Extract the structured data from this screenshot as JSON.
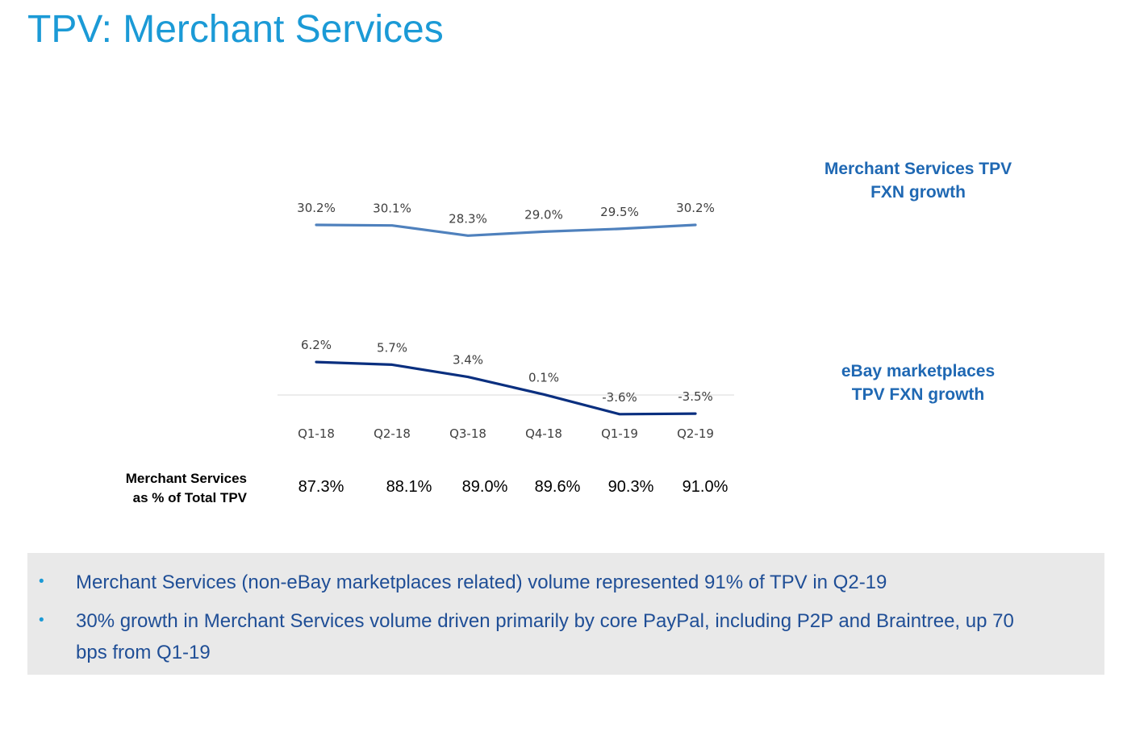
{
  "title": "TPV: Merchant Services",
  "colors": {
    "title": "#1b9ad6",
    "bullet": "#1b9ad6",
    "note_text": "#1f4e96",
    "merchant_line": "#4f81bd",
    "ebay_line": "#0a2f7f",
    "legend_text": "#1f68b3",
    "zero_line": "#d9d9d9",
    "label_text": "#404040",
    "notes_background": "#e9e9e9"
  },
  "chart_data": {
    "type": "line",
    "categories": [
      "Q1-18",
      "Q2-18",
      "Q3-18",
      "Q4-18",
      "Q1-19",
      "Q2-19"
    ],
    "series": [
      {
        "name": "Merchant Services TPV FXN growth",
        "name_lines": [
          "Merchant Services TPV",
          "FXN growth"
        ],
        "values": [
          30.2,
          30.1,
          28.3,
          29.0,
          29.5,
          30.2
        ],
        "data_labels": [
          "30.2%",
          "30.1%",
          "28.3%",
          "29.0%",
          "29.5%",
          "30.2%"
        ]
      },
      {
        "name": "eBay marketplaces TPV FXN growth",
        "name_lines": [
          "eBay marketplaces",
          "TPV FXN growth"
        ],
        "values": [
          6.2,
          5.7,
          3.4,
          0.1,
          -3.6,
          -3.5
        ],
        "data_labels": [
          "6.2%",
          "5.7%",
          "3.4%",
          "0.1%",
          "-3.6%",
          "-3.5%"
        ]
      }
    ],
    "grid": false,
    "legend": "right, beside each line",
    "table_row": {
      "label_lines": [
        "Merchant Services",
        "as % of Total TPV"
      ],
      "values": [
        "87.3%",
        "88.1%",
        "89.0%",
        "89.6%",
        "90.3%",
        "91.0%"
      ]
    }
  },
  "notes": [
    {
      "bullet": "•",
      "text": "Merchant Services (non-eBay marketplaces related) volume represented 91% of TPV in Q2-19"
    },
    {
      "bullet": "•",
      "text": "30% growth in Merchant Services volume driven primarily by core PayPal, including P2P and Braintree, up 70 bps from Q1-19"
    }
  ]
}
